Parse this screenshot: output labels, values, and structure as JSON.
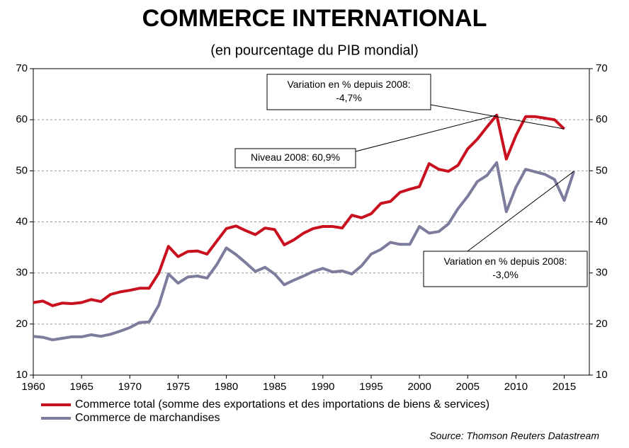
{
  "chart_data": {
    "type": "line",
    "title": "COMMERCE INTERNATIONAL",
    "subtitle": "(en pourcentage du PIB mondial)",
    "xlim": [
      1960,
      2017.6
    ],
    "xticks": [
      1960,
      1965,
      1970,
      1975,
      1980,
      1985,
      1990,
      1995,
      2000,
      2005,
      2010,
      2015
    ],
    "ylim": [
      10,
      70
    ],
    "yticks": [
      10,
      20,
      30,
      40,
      50,
      60,
      70
    ],
    "y2lim": [
      10,
      70
    ],
    "y2ticks": [
      10,
      20,
      30,
      40,
      50,
      60,
      70
    ],
    "grid": true,
    "series": [
      {
        "name": "Commerce total (somme des exportations et des importations de biens & services)",
        "color": "#c8101e",
        "x": [
          1960,
          1961,
          1962,
          1963,
          1964,
          1965,
          1966,
          1967,
          1968,
          1969,
          1970,
          1971,
          1972,
          1973,
          1974,
          1975,
          1976,
          1977,
          1978,
          1979,
          1980,
          1981,
          1982,
          1983,
          1984,
          1985,
          1986,
          1987,
          1988,
          1989,
          1990,
          1991,
          1992,
          1993,
          1994,
          1995,
          1996,
          1997,
          1998,
          1999,
          2000,
          2001,
          2002,
          2003,
          2004,
          2005,
          2006,
          2007,
          2008,
          2009,
          2010,
          2011,
          2012,
          2013,
          2014,
          2015
        ],
        "values": [
          24.2,
          24.5,
          23.6,
          24.1,
          24.0,
          24.2,
          24.8,
          24.4,
          25.8,
          26.3,
          26.6,
          27.0,
          27.0,
          30.0,
          35.2,
          33.2,
          34.2,
          34.3,
          33.7,
          36.2,
          38.7,
          39.2,
          38.3,
          37.5,
          38.8,
          38.5,
          35.5,
          36.5,
          37.8,
          38.7,
          39.1,
          39.1,
          38.8,
          41.3,
          40.8,
          41.6,
          43.6,
          44.0,
          45.8,
          46.4,
          46.9,
          51.4,
          50.3,
          49.9,
          51.1,
          54.3,
          56.2,
          58.6,
          60.9,
          52.3,
          56.9,
          60.6,
          60.6,
          60.3,
          60.0,
          58.2
        ]
      },
      {
        "name": "Commerce de marchandises",
        "color": "#7c7c9c",
        "x": [
          1960,
          1961,
          1962,
          1963,
          1964,
          1965,
          1966,
          1967,
          1968,
          1969,
          1970,
          1971,
          1972,
          1973,
          1974,
          1975,
          1976,
          1977,
          1978,
          1979,
          1980,
          1981,
          1982,
          1983,
          1984,
          1985,
          1986,
          1987,
          1988,
          1989,
          1990,
          1991,
          1992,
          1993,
          1994,
          1995,
          1996,
          1997,
          1998,
          1999,
          2000,
          2001,
          2002,
          2003,
          2004,
          2005,
          2006,
          2007,
          2008,
          2009,
          2010,
          2011,
          2012,
          2013,
          2014,
          2015,
          2016
        ],
        "values": [
          17.6,
          17.4,
          16.9,
          17.2,
          17.5,
          17.5,
          17.9,
          17.6,
          18.0,
          18.6,
          19.3,
          20.3,
          20.4,
          23.7,
          29.8,
          28.0,
          29.2,
          29.4,
          29.0,
          31.6,
          34.9,
          33.6,
          32.0,
          30.3,
          31.1,
          29.8,
          27.7,
          28.6,
          29.4,
          30.3,
          30.9,
          30.2,
          30.4,
          29.8,
          31.4,
          33.7,
          34.6,
          36.0,
          35.6,
          35.6,
          39.1,
          37.8,
          38.1,
          39.6,
          42.6,
          45.0,
          47.9,
          49.1,
          51.6,
          42.0,
          46.8,
          50.3,
          49.8,
          49.3,
          48.3,
          44.2,
          49.9
        ]
      }
    ],
    "annotations": [
      {
        "lines": [
          "Variation en % depuis 2008:",
          "-4,7%"
        ]
      },
      {
        "lines": [
          "Niveau 2008: 60,9%"
        ]
      },
      {
        "lines": [
          "Variation en % depuis 2008:",
          "-3,0%"
        ]
      }
    ],
    "source": "Source: Thomson Reuters Datastream"
  }
}
